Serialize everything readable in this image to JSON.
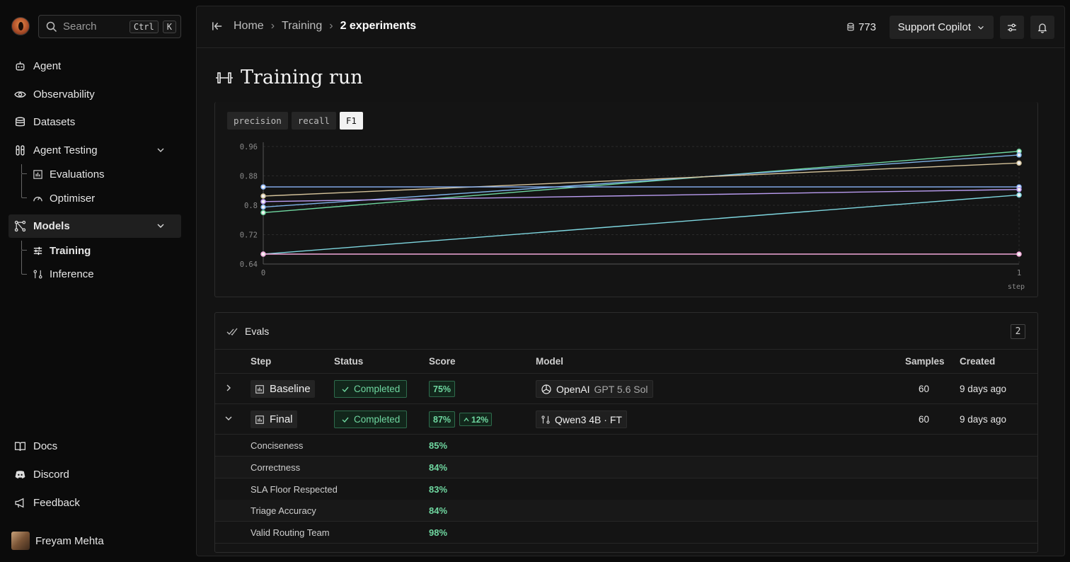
{
  "sidebar": {
    "search": {
      "label": "Search",
      "kbd1": "Ctrl",
      "kbd2": "K"
    },
    "nav": {
      "agent": "Agent",
      "observability": "Observability",
      "datasets": "Datasets",
      "agent_testing": "Agent Testing",
      "evaluations": "Evaluations",
      "optimiser": "Optimiser",
      "models": "Models",
      "training": "Training",
      "inference": "Inference"
    },
    "footer": {
      "docs": "Docs",
      "discord": "Discord",
      "feedback": "Feedback"
    },
    "user": {
      "name": "Freyam Mehta"
    }
  },
  "header": {
    "breadcrumbs": [
      "Home",
      "Training",
      "2 experiments"
    ],
    "credits": "773",
    "project": "Support Copilot"
  },
  "page": {
    "title": "Training run"
  },
  "metric_tabs": [
    "precision",
    "recall",
    "F1"
  ],
  "selected_metric": "F1",
  "chart_data": {
    "type": "line",
    "x": [
      0,
      1
    ],
    "xlabel": "step",
    "ylabel": "",
    "ylim": [
      0.64,
      0.96
    ],
    "yticks": [
      0.96,
      0.88,
      0.8,
      0.72,
      0.64
    ],
    "yticks_labels": [
      "0.96",
      "0.88",
      "0.8",
      "0.72",
      "0.64"
    ],
    "xticks": [
      0,
      1
    ],
    "grid": true,
    "series": [
      {
        "color": "#6fd7a0",
        "values": [
          0.78,
          0.947
        ]
      },
      {
        "color": "#7fb3e8",
        "values": [
          0.795,
          0.937
        ]
      },
      {
        "color": "#d4c29a",
        "values": [
          0.825,
          0.915
        ]
      },
      {
        "color": "#8ab4f8",
        "values": [
          0.85,
          0.85
        ]
      },
      {
        "color": "#b99cf0",
        "values": [
          0.81,
          0.843
        ]
      },
      {
        "color": "#7fd7e0",
        "values": [
          0.667,
          0.828
        ]
      },
      {
        "color": "#f2a6d8",
        "values": [
          0.667,
          0.667
        ]
      }
    ]
  },
  "evals": {
    "title": "Evals",
    "count": "2",
    "columns": {
      "step": "Step",
      "status": "Status",
      "score": "Score",
      "model": "Model",
      "samples": "Samples",
      "created": "Created"
    },
    "rows": [
      {
        "step": "Baseline",
        "status": "Completed",
        "score": "75%",
        "delta": "",
        "model_vendor": "OpenAI",
        "model_name": "GPT 5.6 Sol",
        "samples": "60",
        "created": "9 days ago"
      },
      {
        "step": "Final",
        "status": "Completed",
        "score": "87%",
        "delta": "12%",
        "model_vendor": "",
        "model_name": "Qwen3 4B · FT",
        "samples": "60",
        "created": "9 days ago"
      }
    ],
    "breakdown": [
      {
        "name": "Conciseness",
        "value": "85%"
      },
      {
        "name": "Correctness",
        "value": "84%"
      },
      {
        "name": "SLA Floor Respected",
        "value": "83%"
      },
      {
        "name": "Triage Accuracy",
        "value": "84%"
      },
      {
        "name": "Valid Routing Team",
        "value": "98%"
      }
    ]
  }
}
